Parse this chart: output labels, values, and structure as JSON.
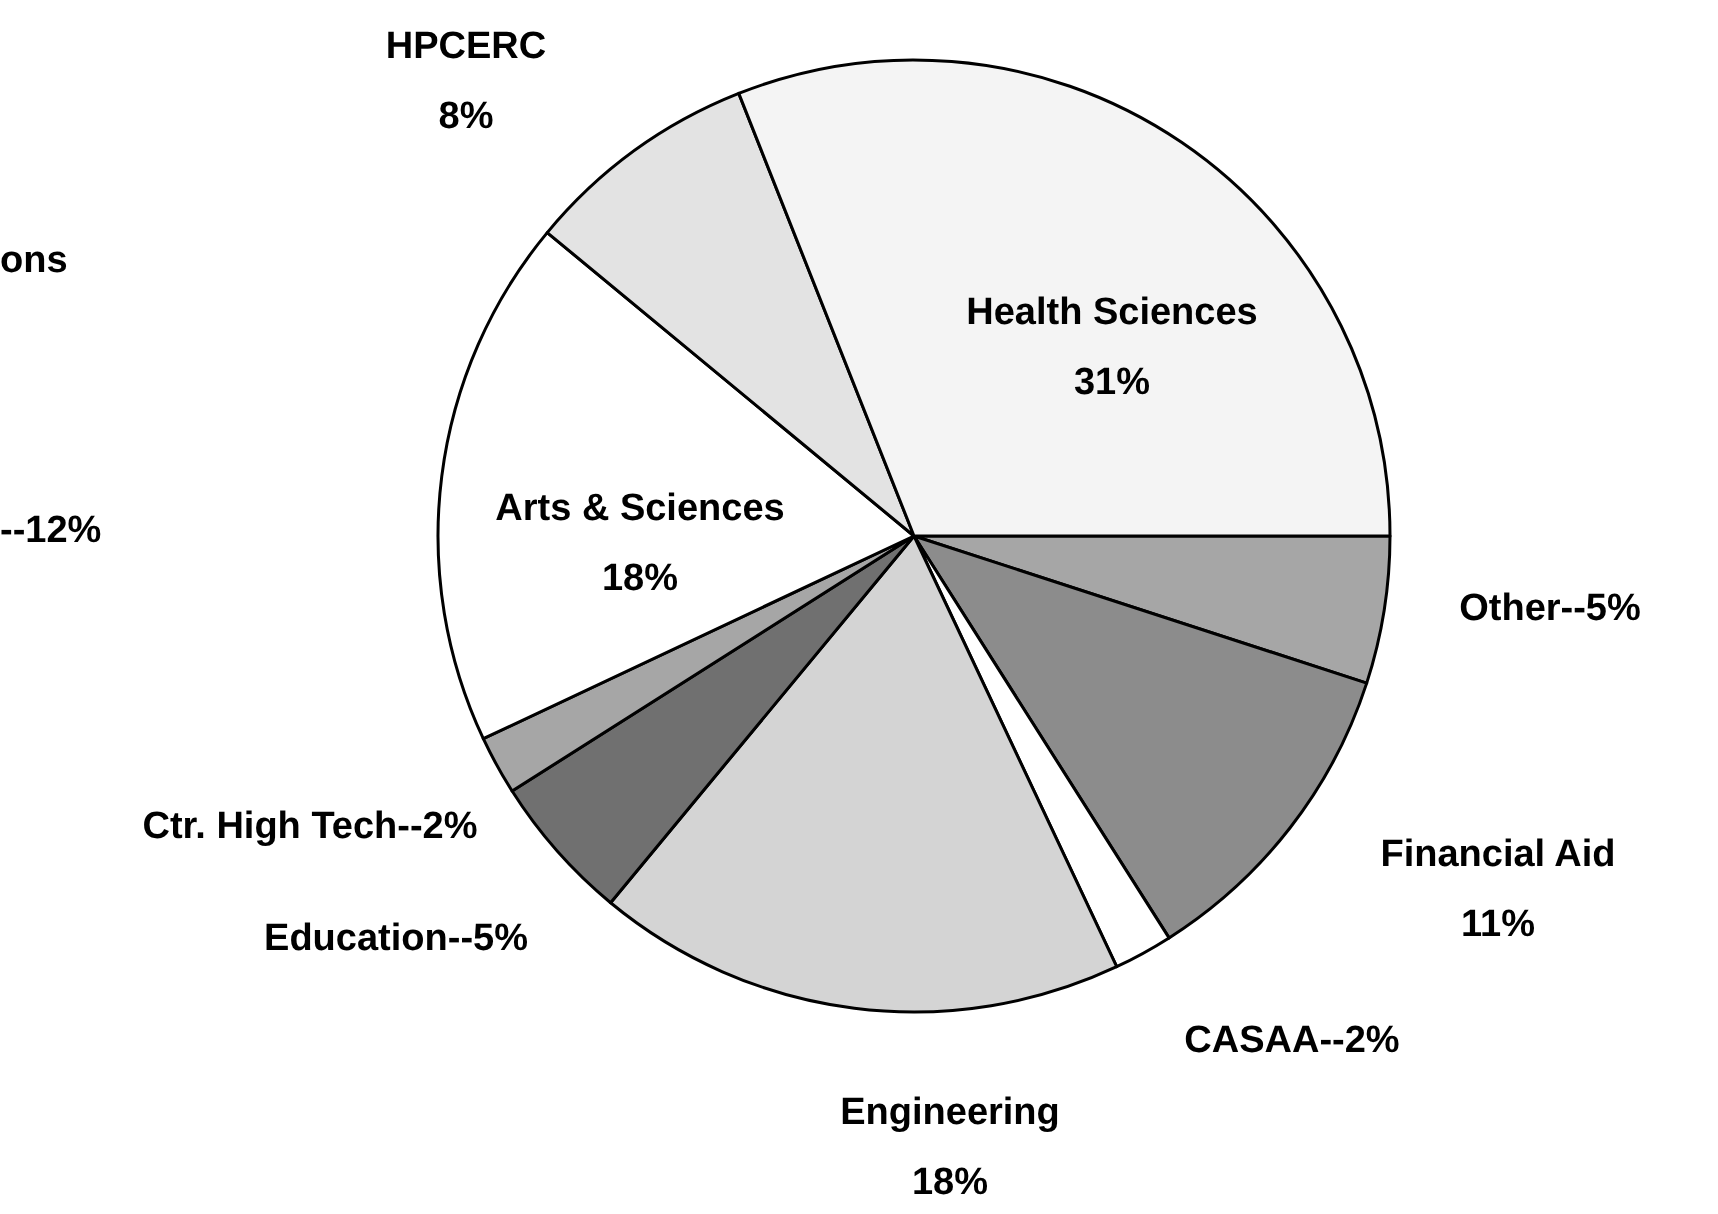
{
  "chart_data": {
    "type": "pie",
    "categories": [
      "Other--",
      "Financial Aid",
      "CASAA--",
      "Engineering",
      "Education--",
      "Ctr. High Tech--",
      "Arts & Sciences",
      "HPCERC",
      "Health Sciences"
    ],
    "values": [
      5,
      11,
      2,
      18,
      5,
      2,
      18,
      8,
      31
    ],
    "value_labels": [
      "5%",
      "11%",
      "2%",
      "18%",
      "5%",
      "2%",
      "18%",
      "8%",
      "31%"
    ],
    "colors": [
      "#a6a6a6",
      "#8c8c8c",
      "#ffffff",
      "#d4d4d4",
      "#707070",
      "#a6a6a6",
      "#ffffff",
      "#e3e3e3",
      "#f4f4f4"
    ],
    "annotations": [
      "ons",
      "--12%"
    ]
  }
}
